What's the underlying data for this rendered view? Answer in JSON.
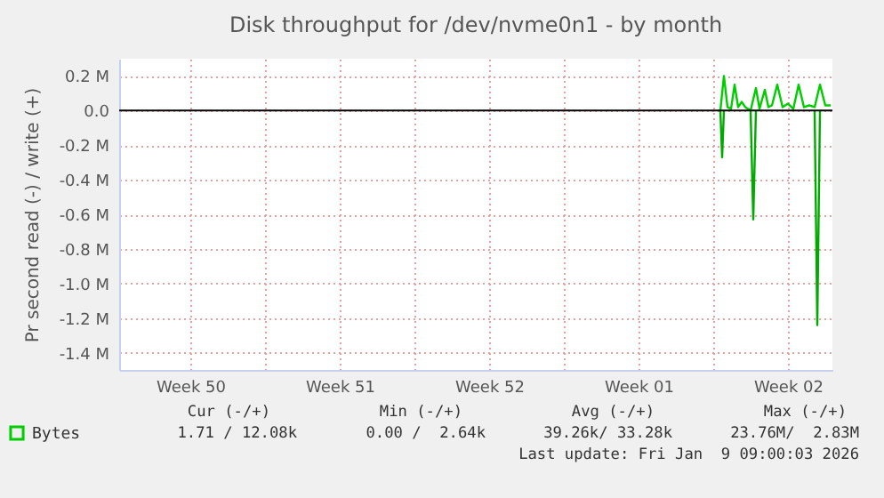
{
  "chart_data": {
    "type": "line",
    "title": "Disk throughput for /dev/nvme0n1 - by month",
    "ylabel": "Pr second read (-) / write (+)",
    "xlim": [
      "2025-12-08T04:00",
      "2026-01-10T14:00"
    ],
    "xticks": [
      {
        "value": "2025-12-11T12:00",
        "label": "Week 50"
      },
      {
        "value": "2025-12-15T00:00",
        "label": null
      },
      {
        "value": "2025-12-18T12:00",
        "label": "Week 51"
      },
      {
        "value": "2025-12-22T00:00",
        "label": null
      },
      {
        "value": "2025-12-25T12:00",
        "label": "Week 52"
      },
      {
        "value": "2025-12-29T00:00",
        "label": null
      },
      {
        "value": "2026-01-01T12:00",
        "label": "Week 01"
      },
      {
        "value": "2026-01-05T00:00",
        "label": null
      },
      {
        "value": "2026-01-08T12:00",
        "label": "Week 02"
      }
    ],
    "ylim": [
      -1.5,
      0.3
    ],
    "yticks": [
      {
        "value": 0.2,
        "label": "0.2 M"
      },
      {
        "value": 0,
        "label": "0.0"
      },
      {
        "value": -0.2,
        "label": "-0.2 M"
      },
      {
        "value": -0.4,
        "label": "-0.4 M"
      },
      {
        "value": -0.6,
        "label": "-0.6 M"
      },
      {
        "value": -0.8,
        "label": "-0.8 M"
      },
      {
        "value": -1.0,
        "label": "-1.0 M"
      },
      {
        "value": -1.2,
        "label": "-1.2 M"
      },
      {
        "value": -1.4,
        "label": "-1.4 M"
      }
    ],
    "grid": true,
    "legend": "bottom left",
    "marker": "none",
    "line_style": "solid",
    "ref_lines": [
      {
        "axis": "y",
        "value": 0,
        "label": null,
        "color": "#000000"
      }
    ],
    "series": [
      {
        "name": "Bytes",
        "color": "#00cc00",
        "x": [
          "2026-01-05T08:00",
          "2026-01-05T12:00",
          "2026-01-05T16:00",
          "2026-01-05T20:00",
          "2026-01-06T00:00",
          "2026-01-06T04:00",
          "2026-01-06T08:00",
          "2026-01-06T12:00",
          "2026-01-06T18:00",
          "2026-01-07T00:00",
          "2026-01-07T04:00",
          "2026-01-07T10:00",
          "2026-01-07T14:00",
          "2026-01-07T18:00",
          "2026-01-08T00:00",
          "2026-01-08T06:00",
          "2026-01-08T12:00",
          "2026-01-08T18:00",
          "2026-01-09T00:00",
          "2026-01-09T06:00",
          "2026-01-09T12:00",
          "2026-01-09T18:00",
          "2026-01-10T00:00",
          "2026-01-10T06:00",
          "2026-01-10T12:00"
        ],
        "values": [
          0,
          0.2,
          0.02,
          0.01,
          0.15,
          0.02,
          0.05,
          0.02,
          0,
          0.13,
          0.01,
          0.12,
          0.02,
          0.03,
          0.15,
          0.02,
          0.04,
          0.01,
          0.15,
          0.02,
          0.03,
          0.02,
          0.15,
          0.03,
          0.03
        ]
      },
      {
        "color": "#00aa00",
        "x": [
          "2026-01-05T08:00",
          "2026-01-05T10:00",
          "2026-01-05T12:00",
          "2026-01-06T00:00",
          "2026-01-06T18:00",
          "2026-01-06T21:00",
          "2026-01-07T00:00",
          "2026-01-07T12:00",
          "2026-01-09T18:00",
          "2026-01-09T21:00",
          "2026-01-10T00:00"
        ],
        "values": [
          0,
          -0.27,
          0,
          null,
          0,
          -0.63,
          0,
          null,
          0,
          -1.24,
          0
        ]
      }
    ],
    "annotations": [
      "Cur (-/+)",
      "Min (-/+)",
      "Avg (-/+)",
      "Max (-/+)",
      "1.71 / 12.08k",
      "0.00 /  2.64k",
      "39.26k/ 33.28k",
      "23.76M/  2.83M",
      "Last update: Fri Jan  9 09:00:03 2026"
    ]
  }
}
